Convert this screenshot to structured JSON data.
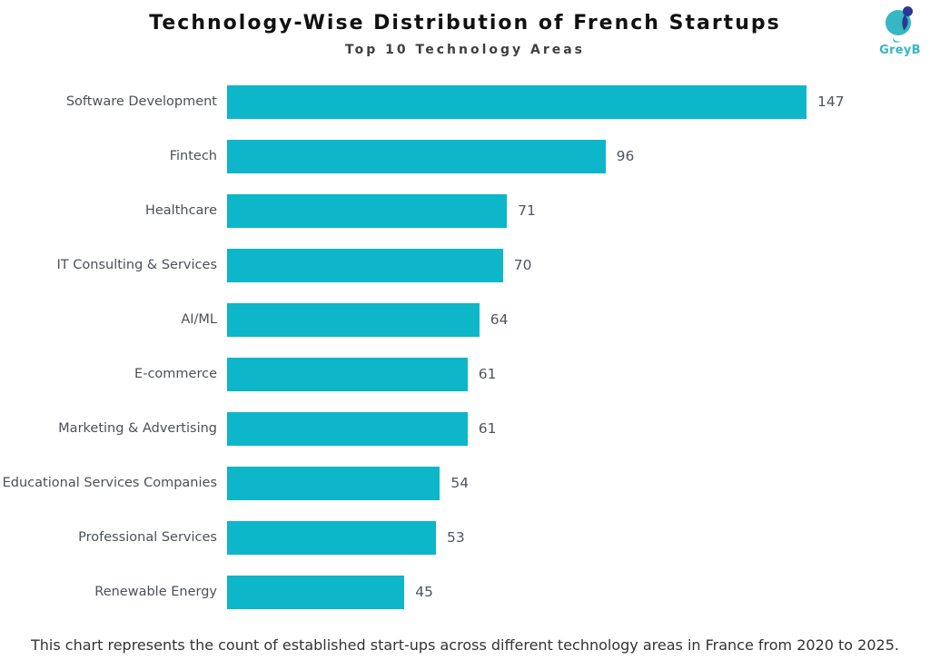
{
  "header": {
    "title": "Technology-Wise Distribution of French Startups",
    "subtitle": "Top 10 Technology Areas"
  },
  "logo": {
    "text": "GreyB",
    "teal": "#35b7c4",
    "navy": "#2b3990"
  },
  "colors": {
    "bar": "#0db6c9",
    "category_text": "#4b5158",
    "value_text": "#4e555e",
    "title_text": "#111111",
    "subtitle_text": "#3f3f3f",
    "footer_text": "#333333"
  },
  "footer": {
    "caption": "This chart represents the count of established start-ups across different technology areas in France from 2020 to 2025."
  },
  "chart_data": {
    "type": "bar",
    "orientation": "horizontal",
    "title": "Technology-Wise Distribution of French Startups",
    "subtitle": "Top 10 Technology Areas",
    "categories": [
      "Software Development",
      "Fintech",
      "Healthcare",
      "IT Consulting & Services",
      "AI/ML",
      "E-commerce",
      "Marketing & Advertising",
      "Educational Services Companies",
      "Professional Services",
      "Renewable Energy"
    ],
    "values": [
      147,
      96,
      71,
      70,
      64,
      61,
      61,
      54,
      53,
      45
    ],
    "value_labels_shown": true,
    "grid": false,
    "legend": false,
    "xlim": [
      0,
      155
    ],
    "bar_color": "#0db6c9",
    "caption": "This chart represents the count of established start-ups across different technology areas in France from 2020 to 2025."
  }
}
